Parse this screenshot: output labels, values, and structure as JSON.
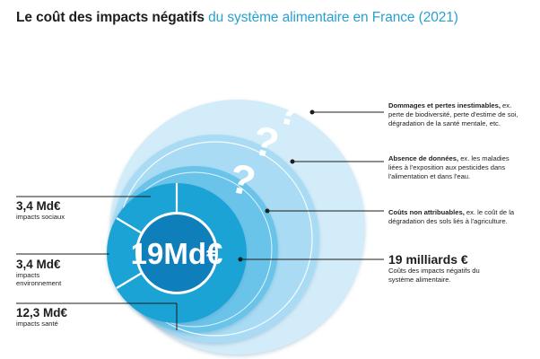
{
  "title": {
    "bold": "Le coût des impacts négatifs",
    "accent": " du système alimentaire en France (2021)"
  },
  "colors": {
    "ring_outer": "#d3ecf9",
    "ring_2": "#a9dcf4",
    "ring_3": "#6bc4ea",
    "donut": "#1da3d6",
    "donut_center": "#0e7fba",
    "accent_text": "#2aa0d0"
  },
  "center": {
    "value": "19Md€"
  },
  "question_mark": "?",
  "left": [
    {
      "value": "3,4 Md€",
      "desc": "impacts sociaux"
    },
    {
      "value": "3,4 Md€",
      "desc": "impacts environnement"
    },
    {
      "value": "12,3 Md€",
      "desc": "impacts santé"
    }
  ],
  "right": [
    {
      "bold": "Dommages et pertes inestimables,",
      "text": " ex. perte de biodiversité, perte d'estime de soi, dégradation de la santé mentale, etc."
    },
    {
      "bold": "Absence de données,",
      "text": " ex. les maladies liées à l'exposition aux pesticides dans l'alimentation et dans l'eau."
    },
    {
      "bold": "Coûts non attribuables,",
      "text": " ex. le coût de la dégradation des sols liés à l'agriculture."
    },
    {
      "bold": "19 milliards €",
      "text": "Coûts des impacts négatifs du système alimentaire."
    }
  ]
}
